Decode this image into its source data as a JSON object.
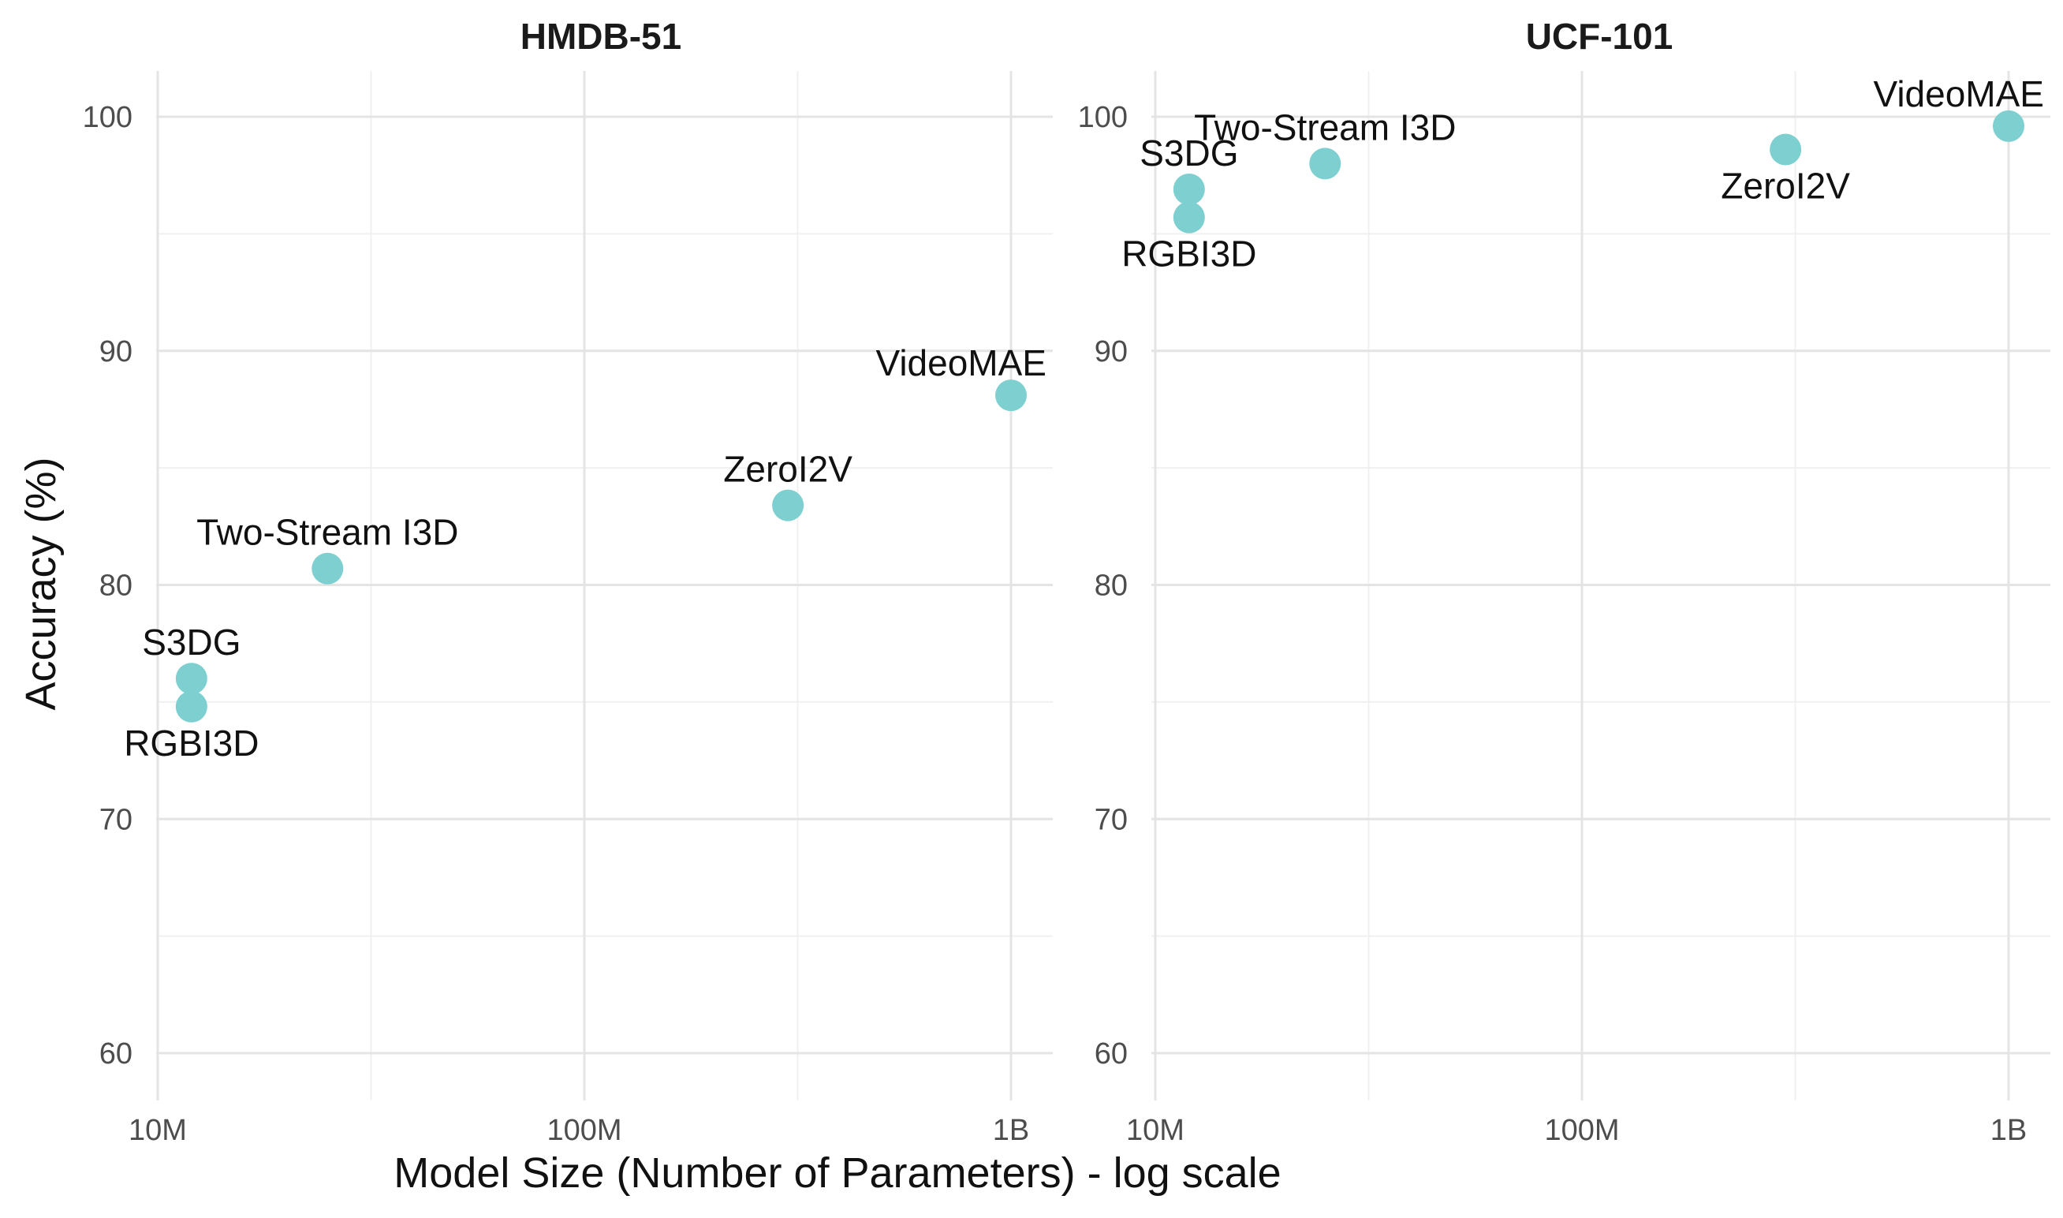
{
  "colors": {
    "point": "#7ecfcf",
    "grid_major": "#e4e4e4",
    "grid_minor": "#f0f0f0",
    "tick_text": "#4d4d4d",
    "title_text": "#111111"
  },
  "xlabel": "Model Size (Number of Parameters) - log scale",
  "ylabel": "Accuracy (%)",
  "chart_data": [
    {
      "type": "scatter",
      "title": "HMDB-51",
      "x_scale": "log",
      "xlim": [
        10000000,
        1000000000
      ],
      "ylim": [
        60,
        100
      ],
      "x_ticks": [
        {
          "value": 10000000,
          "label": "10M"
        },
        {
          "value": 100000000,
          "label": "100M"
        },
        {
          "value": 1000000000,
          "label": "1B"
        }
      ],
      "y_ticks": [
        {
          "value": 60,
          "label": "60"
        },
        {
          "value": 70,
          "label": "70"
        },
        {
          "value": 80,
          "label": "80"
        },
        {
          "value": 90,
          "label": "90"
        },
        {
          "value": 100,
          "label": "100"
        }
      ],
      "grid": true,
      "points": [
        {
          "label": "S3DG",
          "x": 12000000,
          "y": 76.0,
          "label_pos": "above"
        },
        {
          "label": "RGBI3D",
          "x": 12000000,
          "y": 74.8,
          "label_pos": "below"
        },
        {
          "label": "Two-Stream I3D",
          "x": 25000000,
          "y": 80.7,
          "label_pos": "above"
        },
        {
          "label": "ZeroI2V",
          "x": 300000000,
          "y": 83.4,
          "label_pos": "above"
        },
        {
          "label": "VideoMAE",
          "x": 1000000000,
          "y": 88.1,
          "label_pos": "above-left"
        }
      ]
    },
    {
      "type": "scatter",
      "title": "UCF-101",
      "x_scale": "log",
      "xlim": [
        10000000,
        1000000000
      ],
      "ylim": [
        60,
        100
      ],
      "x_ticks": [
        {
          "value": 10000000,
          "label": "10M"
        },
        {
          "value": 100000000,
          "label": "100M"
        },
        {
          "value": 1000000000,
          "label": "1B"
        }
      ],
      "y_ticks": [
        {
          "value": 60,
          "label": "60"
        },
        {
          "value": 70,
          "label": "70"
        },
        {
          "value": 80,
          "label": "80"
        },
        {
          "value": 90,
          "label": "90"
        },
        {
          "value": 100,
          "label": "100"
        }
      ],
      "grid": true,
      "points": [
        {
          "label": "S3DG",
          "x": 12000000,
          "y": 96.9,
          "label_pos": "above"
        },
        {
          "label": "RGBI3D",
          "x": 12000000,
          "y": 95.7,
          "label_pos": "below"
        },
        {
          "label": "Two-Stream I3D",
          "x": 25000000,
          "y": 98.0,
          "label_pos": "above"
        },
        {
          "label": "ZeroI2V",
          "x": 300000000,
          "y": 98.6,
          "label_pos": "below"
        },
        {
          "label": "VideoMAE",
          "x": 1000000000,
          "y": 99.6,
          "label_pos": "above-left"
        }
      ]
    }
  ]
}
